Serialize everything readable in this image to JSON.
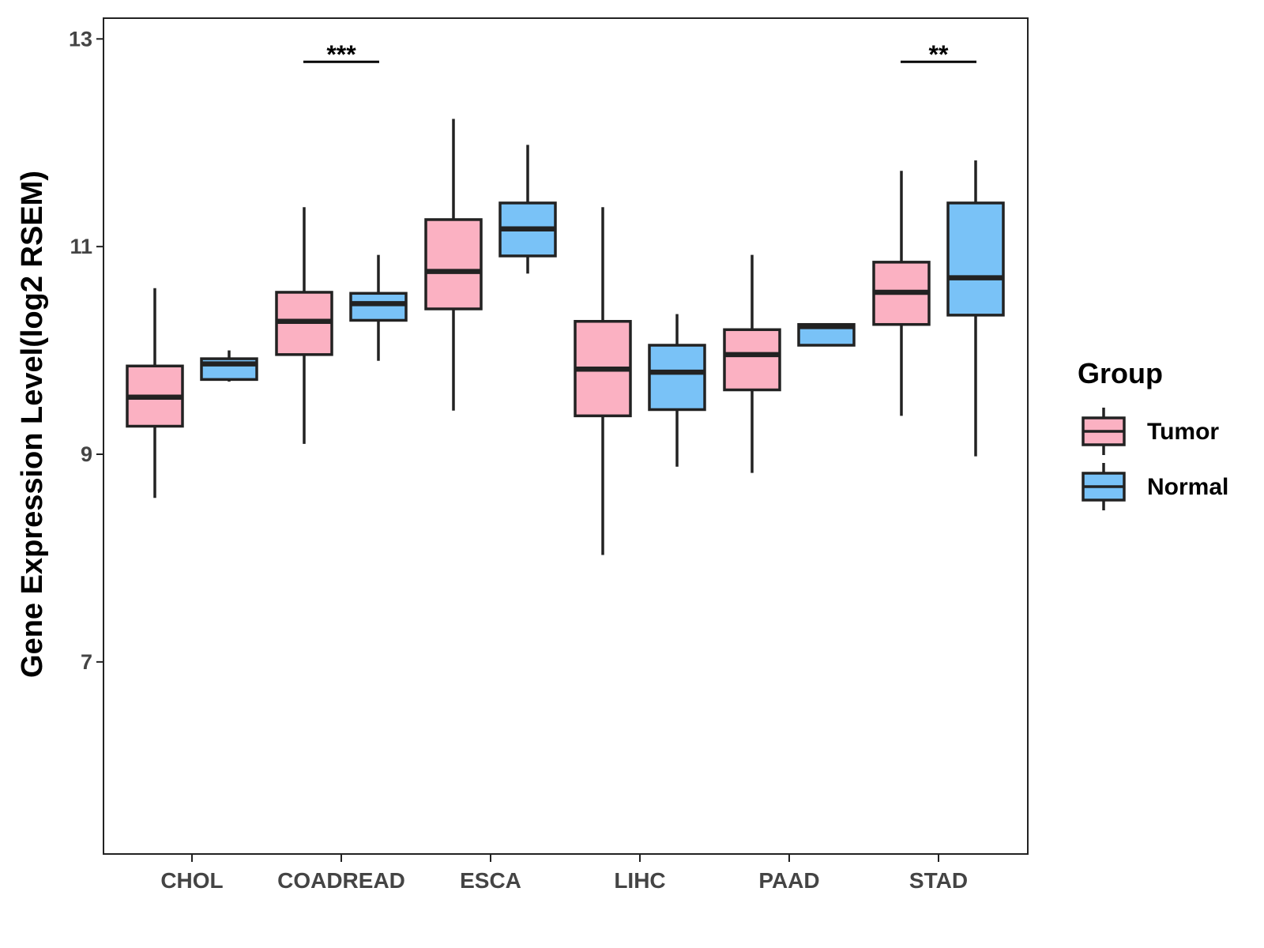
{
  "chart_data": {
    "type": "boxplot",
    "ylabel": "Gene Expression Level(log2 RSEM)",
    "xlabel": "",
    "ylim": [
      5.15,
      13.2
    ],
    "yticks": [
      7,
      9,
      11,
      13
    ],
    "categories": [
      "CHOL",
      "COADREAD",
      "ESCA",
      "LIHC",
      "PAAD",
      "STAD"
    ],
    "legend": {
      "title": "Group",
      "position": "right",
      "entries": [
        {
          "name": "Tumor",
          "color": "#FBB1C2"
        },
        {
          "name": "Normal",
          "color": "#79C2F7"
        }
      ]
    },
    "series": [
      {
        "name": "Tumor",
        "color": "#FBB1C2",
        "boxes": [
          {
            "category": "CHOL",
            "lower_whisker": 8.58,
            "q1": 9.27,
            "median": 9.55,
            "q3": 9.85,
            "upper_whisker": 10.6
          },
          {
            "category": "COADREAD",
            "lower_whisker": 9.1,
            "q1": 9.96,
            "median": 10.28,
            "q3": 10.56,
            "upper_whisker": 11.38
          },
          {
            "category": "ESCA",
            "lower_whisker": 9.42,
            "q1": 10.4,
            "median": 10.76,
            "q3": 11.26,
            "upper_whisker": 12.23
          },
          {
            "category": "LIHC",
            "lower_whisker": 8.03,
            "q1": 9.37,
            "median": 9.82,
            "q3": 10.28,
            "upper_whisker": 11.38
          },
          {
            "category": "PAAD",
            "lower_whisker": 8.82,
            "q1": 9.62,
            "median": 9.96,
            "q3": 10.2,
            "upper_whisker": 10.92
          },
          {
            "category": "STAD",
            "lower_whisker": 9.37,
            "q1": 10.25,
            "median": 10.56,
            "q3": 10.85,
            "upper_whisker": 11.73
          }
        ]
      },
      {
        "name": "Normal",
        "color": "#79C2F7",
        "boxes": [
          {
            "category": "CHOL",
            "lower_whisker": 9.7,
            "q1": 9.72,
            "median": 9.87,
            "q3": 9.92,
            "upper_whisker": 10.0
          },
          {
            "category": "COADREAD",
            "lower_whisker": 9.9,
            "q1": 10.29,
            "median": 10.45,
            "q3": 10.55,
            "upper_whisker": 10.92
          },
          {
            "category": "ESCA",
            "lower_whisker": 10.74,
            "q1": 10.91,
            "median": 11.17,
            "q3": 11.42,
            "upper_whisker": 11.98
          },
          {
            "category": "LIHC",
            "lower_whisker": 8.88,
            "q1": 9.43,
            "median": 9.79,
            "q3": 10.05,
            "upper_whisker": 10.35
          },
          {
            "category": "PAAD",
            "lower_whisker": 10.05,
            "q1": 10.05,
            "median": 10.23,
            "q3": 10.25,
            "upper_whisker": 10.25
          },
          {
            "category": "STAD",
            "lower_whisker": 8.98,
            "q1": 10.34,
            "median": 10.7,
            "q3": 11.42,
            "upper_whisker": 11.83
          }
        ]
      }
    ],
    "annotations": [
      {
        "category": "COADREAD",
        "label": "***",
        "y": 12.78
      },
      {
        "category": "STAD",
        "label": "**",
        "y": 12.78
      }
    ]
  }
}
